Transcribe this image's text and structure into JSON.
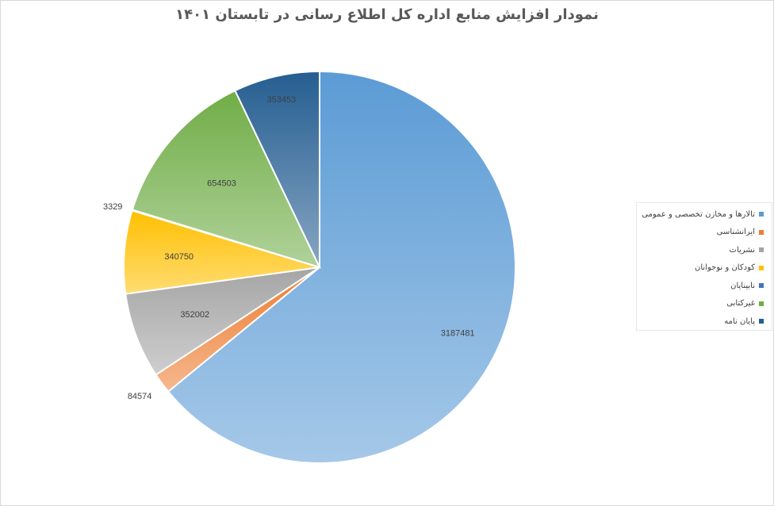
{
  "chart_data": {
    "type": "pie",
    "title": "نمودار افزایش منابع اداره کل اطلاع رسانی در تابستان ۱۴۰۱",
    "legend_position": "right",
    "slices": [
      {
        "name": "تالارها و مخازن تخصصی و عمومی",
        "value": 3187481,
        "label": "3187481",
        "color": "#5B9BD5"
      },
      {
        "name": "ایرانشناسی",
        "value": 84574,
        "label": "84574",
        "color": "#ED7D31"
      },
      {
        "name": "نشریات",
        "value": 352002,
        "label": "352002",
        "color": "#A5A5A5"
      },
      {
        "name": "کودکان و نوجوانان",
        "value": 340750,
        "label": "340750",
        "color": "#FFC000"
      },
      {
        "name": "نابینایان",
        "value": 3329,
        "label": "3329",
        "color": "#4472C4"
      },
      {
        "name": "غیرکتابی",
        "value": 654503,
        "label": "654503",
        "color": "#70AD47"
      },
      {
        "name": "پایان نامه",
        "value": 353453,
        "label": "353453",
        "color": "#255E91"
      }
    ]
  }
}
